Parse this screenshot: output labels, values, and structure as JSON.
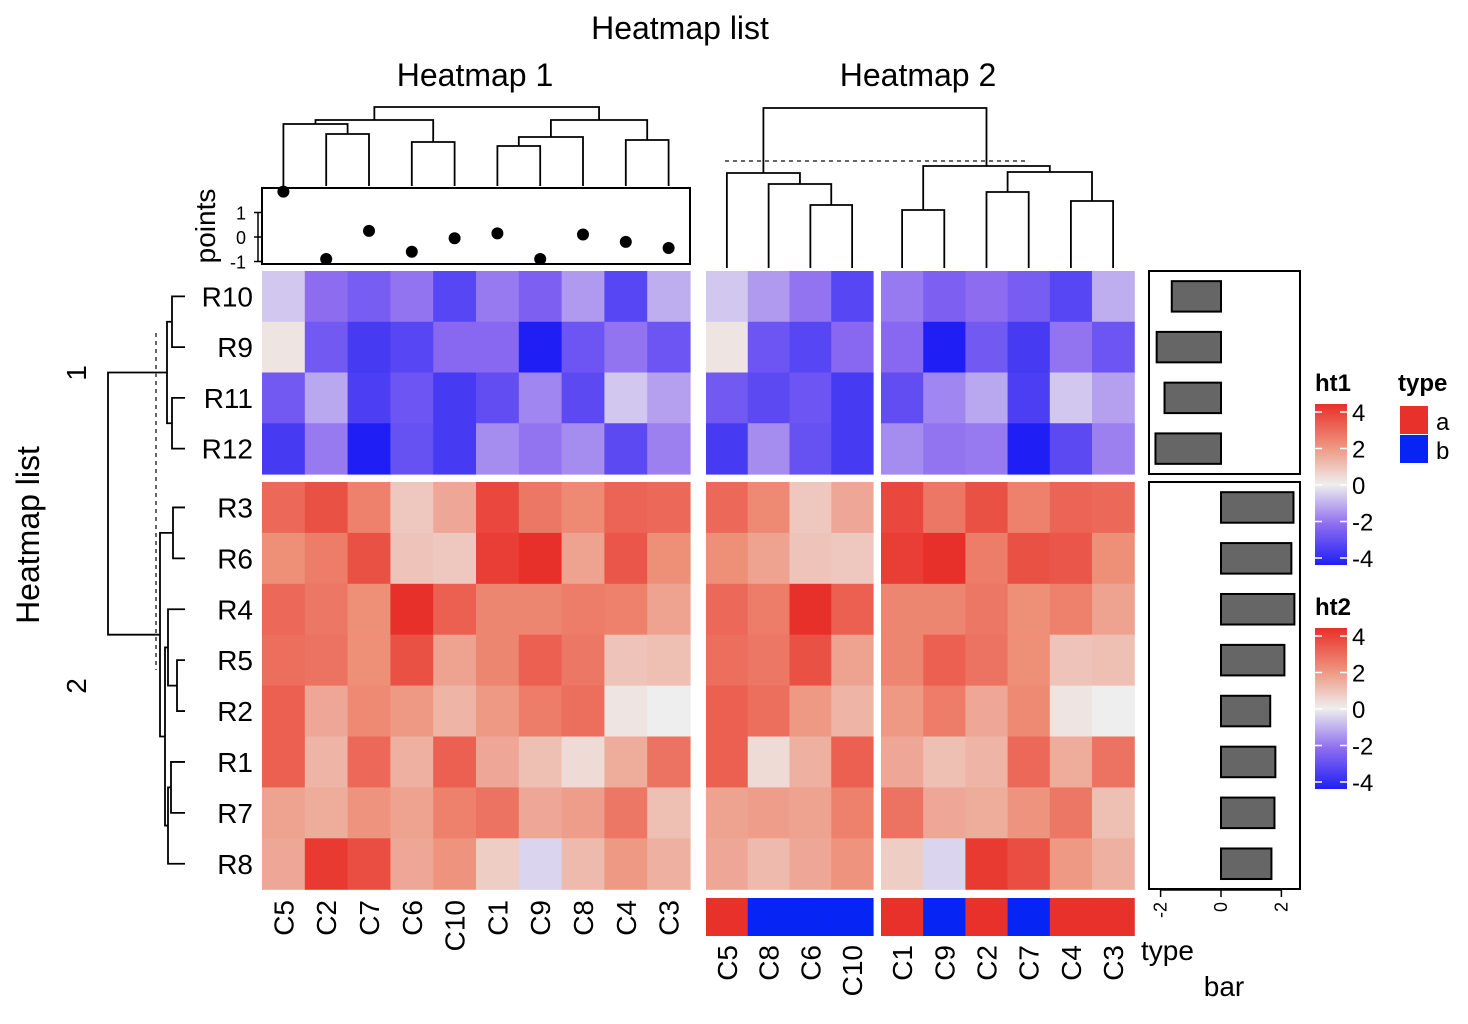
{
  "chart_data": {
    "type": "heatmap",
    "title": "Heatmap list",
    "row_title": "Heatmap list",
    "heatmaps": [
      {
        "name": "Heatmap 1",
        "column_order": [
          "C5",
          "C2",
          "C7",
          "C6",
          "C10",
          "C1",
          "C9",
          "C8",
          "C4",
          "C3"
        ]
      },
      {
        "name": "Heatmap 2",
        "column_slices": [
          [
            "C5",
            "C8",
            "C6",
            "C10"
          ],
          [
            "C1",
            "C9",
            "C2",
            "C7",
            "C4",
            "C3"
          ]
        ]
      }
    ],
    "row_slices": [
      {
        "label": "1",
        "rows": [
          "R10",
          "R9",
          "R11",
          "R12"
        ]
      },
      {
        "label": "2",
        "rows": [
          "R3",
          "R6",
          "R4",
          "R5",
          "R2",
          "R1",
          "R7",
          "R8"
        ]
      }
    ],
    "columns": [
      "C5",
      "C2",
      "C7",
      "C6",
      "C10",
      "C1",
      "C9",
      "C8",
      "C4",
      "C3"
    ],
    "values": {
      "R10": [
        -0.6,
        -2.0,
        -2.4,
        -1.9,
        -3.0,
        -1.8,
        -2.3,
        -1.3,
        -3.0,
        -1.0
      ],
      "R9": [
        0.2,
        -2.5,
        -3.3,
        -3.0,
        -2.1,
        -2.1,
        -4.2,
        -2.6,
        -1.9,
        -2.6
      ],
      "R11": [
        -2.5,
        -1.1,
        -3.2,
        -2.6,
        -3.3,
        -2.8,
        -1.6,
        -2.9,
        -0.6,
        -1.2
      ],
      "R12": [
        -3.3,
        -1.8,
        -4.3,
        -2.7,
        -3.3,
        -1.5,
        -1.9,
        -1.5,
        -2.9,
        -1.7
      ],
      "R3": [
        2.8,
        3.3,
        2.3,
        0.8,
        1.5,
        3.5,
        2.5,
        2.1,
        2.9,
        2.8
      ],
      "R6": [
        2.0,
        2.4,
        3.3,
        0.9,
        0.8,
        3.7,
        4.0,
        1.6,
        3.2,
        2.0
      ],
      "R4": [
        2.8,
        2.5,
        2.0,
        4.0,
        3.0,
        2.2,
        2.2,
        2.4,
        2.3,
        1.6
      ],
      "R5": [
        2.7,
        2.6,
        2.0,
        3.3,
        1.6,
        2.2,
        3.0,
        2.5,
        0.9,
        1.0
      ],
      "R2": [
        3.0,
        1.5,
        2.1,
        1.8,
        1.2,
        1.8,
        2.4,
        2.7,
        0.2,
        0.0
      ],
      "R1": [
        3.0,
        1.2,
        2.8,
        1.3,
        3.0,
        1.5,
        1.0,
        0.4,
        1.4,
        2.6
      ],
      "R7": [
        1.6,
        1.4,
        1.9,
        1.6,
        2.3,
        2.6,
        1.5,
        1.7,
        2.5,
        1.0
      ],
      "R8": [
        1.5,
        3.8,
        3.4,
        1.5,
        1.9,
        0.7,
        -0.4,
        1.1,
        1.8,
        1.3
      ]
    },
    "points_annotation": {
      "label": "points",
      "ticks": [
        "1",
        "0",
        "-1"
      ],
      "ylim": [
        -1,
        2
      ],
      "values": {
        "C5": 1.85,
        "C2": -0.9,
        "C7": 0.25,
        "C6": -0.6,
        "C10": -0.05,
        "C1": 0.15,
        "C9": -0.9,
        "C8": 0.1,
        "C4": -0.2,
        "C3": -0.45
      }
    },
    "type_annotation": {
      "label": "type",
      "values": {
        "C5": "a",
        "C8": "b",
        "C6": "b",
        "C10": "b",
        "C1": "a",
        "C9": "b",
        "C2": "a",
        "C7": "b",
        "C4": "a",
        "C3": "a"
      }
    },
    "bar_annotation": {
      "label": "bar",
      "ticks": [
        "-2",
        "0",
        "2"
      ],
      "xlim": [
        -2.4,
        2.6
      ],
      "values": {
        "R10": -1.63,
        "R9": -2.13,
        "R11": -1.87,
        "R12": -2.17,
        "R3": 2.4,
        "R6": 2.33,
        "R4": 2.43,
        "R5": 2.1,
        "R2": 1.63,
        "R1": 1.8,
        "R7": 1.77,
        "R8": 1.67
      },
      "bar_color": "#666666"
    },
    "legends": {
      "ht1": {
        "title": "ht1",
        "labels": [
          "4",
          "2",
          "0",
          "-2",
          "-4"
        ]
      },
      "ht2": {
        "title": "ht2",
        "labels": [
          "4",
          "2",
          "0",
          "-2",
          "-4"
        ]
      },
      "type": {
        "title": "type",
        "items": [
          {
            "label": "a",
            "color": "#E8312A"
          },
          {
            "label": "b",
            "color": "#0625F5"
          }
        ]
      }
    },
    "color_scale": {
      "min": -4,
      "mid": 0,
      "max": 4,
      "low": "#1F1FF5",
      "midcolor": "#EEEEEE",
      "high": "#E8302A"
    }
  }
}
